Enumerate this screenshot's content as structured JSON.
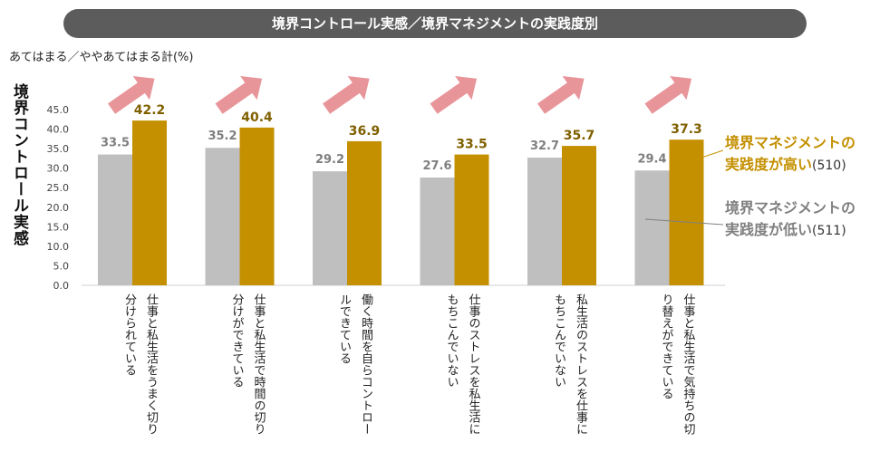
{
  "chart_data": {
    "type": "bar",
    "title": "境界コントロール実感／境界マネジメントの実践度別",
    "subtitle": "あてはまる／ややあてはまる計(%)",
    "ylabel": "境界コントロール実感",
    "ylim": [
      0,
      45
    ],
    "yticks": [
      "45.0",
      "40.0",
      "35.0",
      "30.0",
      "25.0",
      "20.0",
      "15.0",
      "10.0",
      "5.0",
      "0.0"
    ],
    "categories": [
      [
        "仕事と私生活をうまく切り",
        "分けられている"
      ],
      [
        "仕事と私生活で時間の切り",
        "分けができている"
      ],
      [
        "働く時間を自らコントロー",
        "ルできている"
      ],
      [
        "仕事のストレスを私生活に",
        "もちこんでいない"
      ],
      [
        "私生活のストレスを仕事に",
        "もちこんでいない"
      ],
      [
        "仕事と私生活で気持ちの切",
        "り替えができている"
      ]
    ],
    "series": [
      {
        "name": "境界マネジメントの実践度が低い",
        "n": "(511)",
        "color": "#bfbfbf",
        "label_color": "#7f7f7f",
        "values": [
          33.5,
          35.2,
          29.2,
          27.6,
          32.7,
          29.4
        ]
      },
      {
        "name": "境界マネジメントの実践度が高い",
        "n": "(510)",
        "color": "#c49000",
        "label_color": "#7f6000",
        "values": [
          42.2,
          40.4,
          36.9,
          33.5,
          35.7,
          37.3
        ]
      }
    ],
    "arrow_color": "#e8959a"
  },
  "legend": {
    "high_line1": "境界マネジメントの",
    "high_line2": "実践度が高い",
    "high_n": "(510)",
    "low_line1": "境界マネジメントの",
    "low_line2": "実践度が低い",
    "low_n": "(511)"
  }
}
